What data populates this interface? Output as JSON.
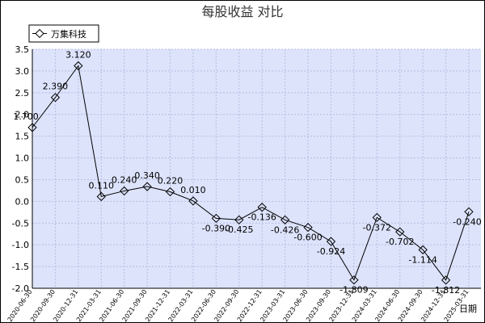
{
  "chart_data": {
    "type": "line",
    "title": "每股收益  对比",
    "x_axis_title": "日期",
    "legend": {
      "placement": "top-left",
      "entries": [
        "万集科技"
      ]
    },
    "grid": true,
    "ylim": [
      -2.0,
      3.5
    ],
    "yticks": [
      "3.5",
      "3.0",
      "2.5",
      "2.0",
      "1.5",
      "1.0",
      "0.5",
      "0.0",
      "-0.5",
      "-1.0",
      "-1.5",
      "-2.0"
    ],
    "categories": [
      "2020-06-30",
      "2020-09-30",
      "2020-12-31",
      "2021-03-31",
      "2021-06-30",
      "2021-09-30",
      "2021-12-31",
      "2022-03-31",
      "2022-06-30",
      "2022-09-30",
      "2022-12-31",
      "2023-03-31",
      "2023-06-30",
      "2023-09-30",
      "2023-12-31",
      "2024-03-31",
      "2024-06-30",
      "2024-09-30",
      "2024-12-31",
      "2025-03-31"
    ],
    "series": [
      {
        "name": "万集科技",
        "color": "#000000",
        "values": [
          1.7,
          2.39,
          3.12,
          0.11,
          0.24,
          0.34,
          0.22,
          0.01,
          -0.39,
          -0.425,
          -0.136,
          -0.426,
          -0.6,
          -0.924,
          -1.809,
          -0.372,
          -0.702,
          -1.114,
          -1.812,
          -0.24
        ],
        "labels": [
          "1.700",
          "2.390",
          "3.120",
          "0.110",
          "0.240",
          "0.340",
          "0.220",
          "0.010",
          "-0.390",
          "-0.425",
          "-0.136",
          "-0.426",
          "-0.600",
          "-0.924",
          "-1.809",
          "-0.372",
          "-0.702",
          "-1.114",
          "-1.812",
          "-0.240"
        ]
      }
    ]
  }
}
